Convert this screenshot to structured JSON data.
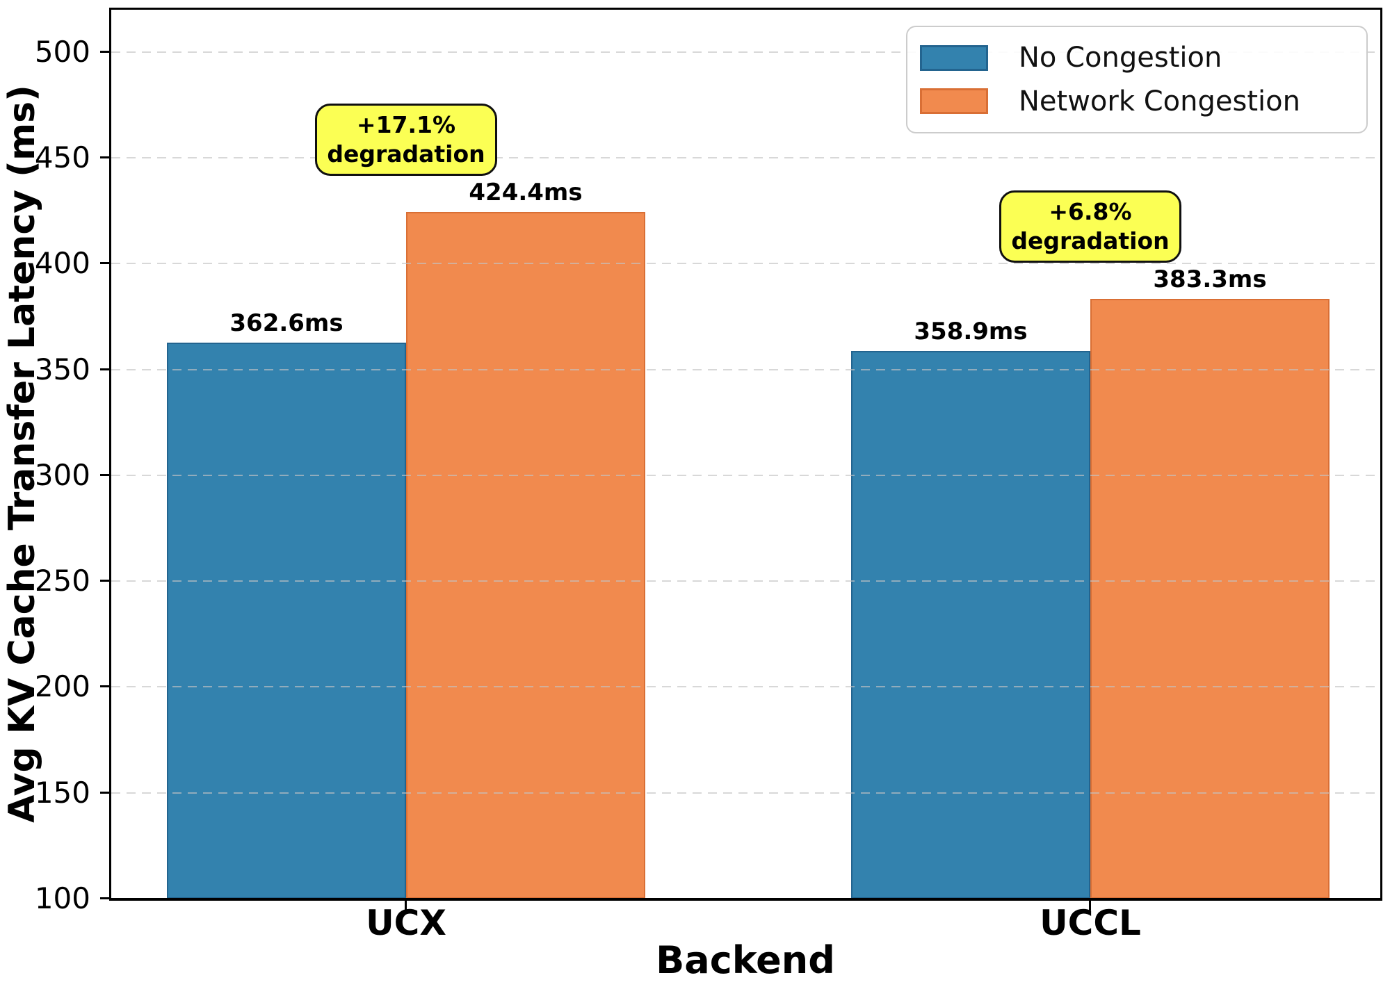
{
  "chart_data": {
    "type": "bar",
    "title": "",
    "xlabel": "Backend",
    "ylabel": "Avg KV Cache Transfer Latency (ms)",
    "categories": [
      "UCX",
      "UCCL"
    ],
    "series": [
      {
        "name": "No Congestion",
        "color": "#3382ae",
        "edge_color": "#23648f",
        "values": [
          362.6,
          358.9
        ],
        "value_labels": [
          "362.6ms",
          "358.9ms"
        ]
      },
      {
        "name": "Network Congestion",
        "color": "#f18a4e",
        "edge_color": "#d96f35",
        "values": [
          424.4,
          383.3
        ],
        "value_labels": [
          "424.4ms",
          "383.3ms"
        ]
      }
    ],
    "annotations": [
      {
        "line1": "+17.1%",
        "line2": "degradation"
      },
      {
        "line1": "+6.8%",
        "line2": "degradation"
      }
    ],
    "annotation_bg": "#fbff54",
    "ylim": [
      100,
      520
    ],
    "yticks": [
      100,
      150,
      200,
      250,
      300,
      350,
      400,
      450,
      500
    ],
    "grid": "horizontal dashed",
    "legend_position": "upper right"
  }
}
